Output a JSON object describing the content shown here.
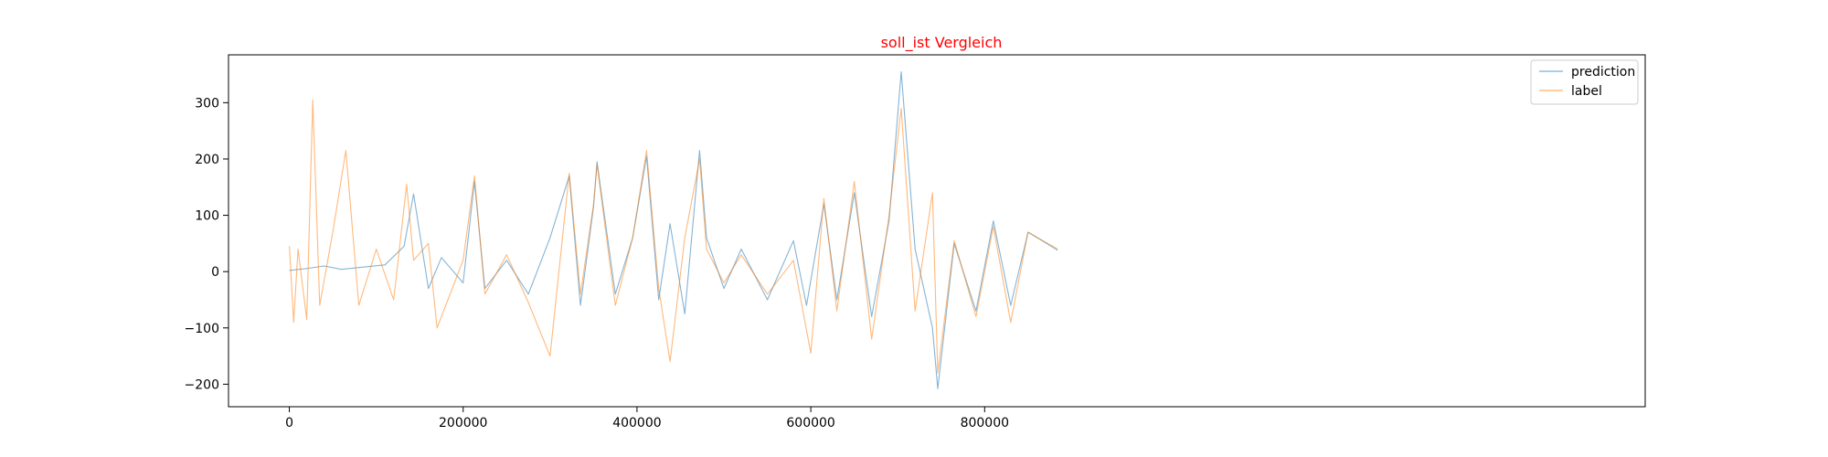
{
  "chart_data": {
    "type": "line",
    "title": "soll_ist Vergleich",
    "xlabel": "",
    "ylabel": "",
    "xlim": [
      -70000,
      1560000
    ],
    "ylim": [
      -240,
      385
    ],
    "x_ticks": [
      0,
      200000,
      400000,
      600000,
      800000
    ],
    "x_tick_labels": [
      "0",
      "200000",
      "400000",
      "600000",
      "800000"
    ],
    "y_ticks": [
      -200,
      -100,
      0,
      100,
      200,
      300
    ],
    "y_tick_labels": [
      "−200",
      "−100",
      "0",
      "100",
      "200",
      "300"
    ],
    "grid": false,
    "legend_position": "top-right",
    "series": [
      {
        "name": "prediction",
        "color": "#1f77b4",
        "x": [
          0,
          22000,
          40000,
          60000,
          85000,
          110000,
          132000,
          143000,
          160000,
          175000,
          200000,
          213000,
          225000,
          250000,
          275000,
          300000,
          322000,
          335000,
          350000,
          354000,
          375000,
          395000,
          411000,
          425000,
          438000,
          455000,
          472000,
          480000,
          500000,
          520000,
          550000,
          580000,
          595000,
          615000,
          630000,
          650000,
          670000,
          690000,
          704000,
          720000,
          740000,
          746000,
          765000,
          790000,
          810000,
          830000,
          850000,
          884000
        ],
        "values": [
          2,
          6,
          10,
          4,
          8,
          12,
          45,
          138,
          -30,
          25,
          -20,
          160,
          -30,
          20,
          -40,
          60,
          170,
          -60,
          115,
          195,
          -40,
          60,
          205,
          -50,
          85,
          -75,
          215,
          60,
          -30,
          40,
          -50,
          55,
          -60,
          120,
          -50,
          140,
          -80,
          90,
          355,
          40,
          -100,
          -208,
          50,
          -70,
          90,
          -60,
          70,
          38
        ]
      },
      {
        "name": "label",
        "color": "#ff7f0e",
        "x": [
          0,
          5000,
          10000,
          20000,
          27000,
          35000,
          50000,
          65000,
          80000,
          100000,
          120000,
          135000,
          143000,
          160000,
          170000,
          200000,
          213000,
          225000,
          250000,
          275000,
          300000,
          322000,
          335000,
          350000,
          354000,
          375000,
          395000,
          411000,
          425000,
          438000,
          455000,
          472000,
          480000,
          500000,
          520000,
          550000,
          580000,
          600000,
          615000,
          630000,
          650000,
          670000,
          690000,
          704000,
          720000,
          740000,
          746000,
          765000,
          790000,
          810000,
          830000,
          850000,
          884000
        ],
        "values": [
          45,
          -90,
          40,
          -85,
          305,
          -60,
          70,
          215,
          -60,
          40,
          -50,
          155,
          20,
          50,
          -100,
          20,
          170,
          -40,
          30,
          -55,
          -150,
          175,
          -40,
          120,
          190,
          -60,
          60,
          215,
          -30,
          -160,
          60,
          200,
          40,
          -20,
          30,
          -40,
          20,
          -145,
          130,
          -70,
          160,
          -120,
          100,
          290,
          -70,
          140,
          -180,
          55,
          -80,
          80,
          -90,
          70,
          40
        ]
      }
    ]
  }
}
